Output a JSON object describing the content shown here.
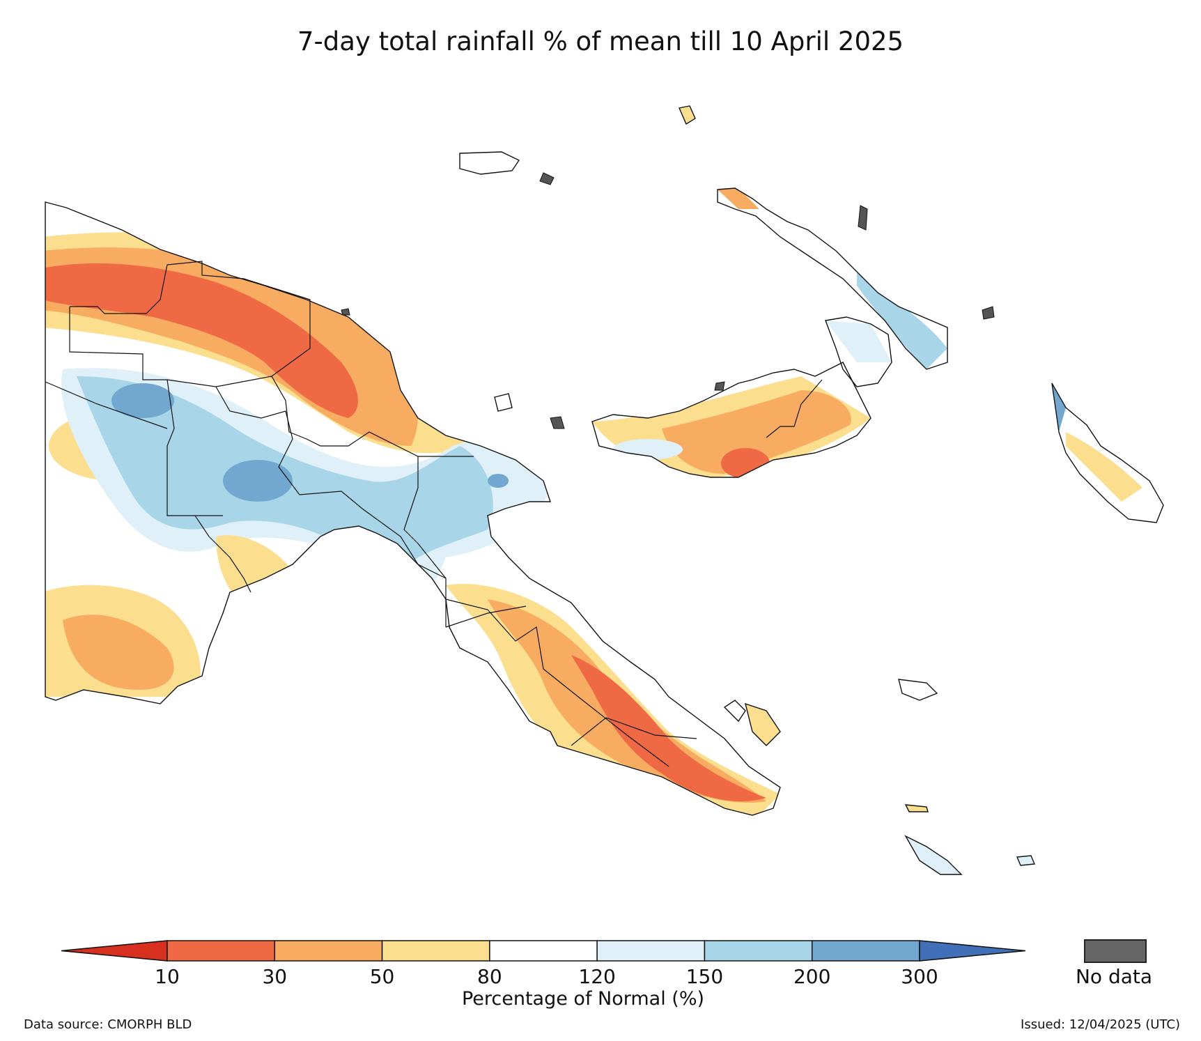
{
  "title": "7-day total rainfall % of mean till 10 April 2025",
  "colorbar": {
    "ticks": [
      "10",
      "30",
      "50",
      "80",
      "120",
      "150",
      "200",
      "300"
    ],
    "label": "Percentage of Normal (%)",
    "colors": [
      "#d7301f",
      "#ef6a44",
      "#f7ac62",
      "#fbdf8e",
      "#ffffff",
      "#dff0f8",
      "#a8d5e8",
      "#72a8d0",
      "#4170b8"
    ],
    "nodata_color": "#666666",
    "nodata_label": "No data"
  },
  "footer": {
    "source": "Data source: CMORPH BLD",
    "issued": "Issued: 12/04/2025 (UTC)"
  }
}
